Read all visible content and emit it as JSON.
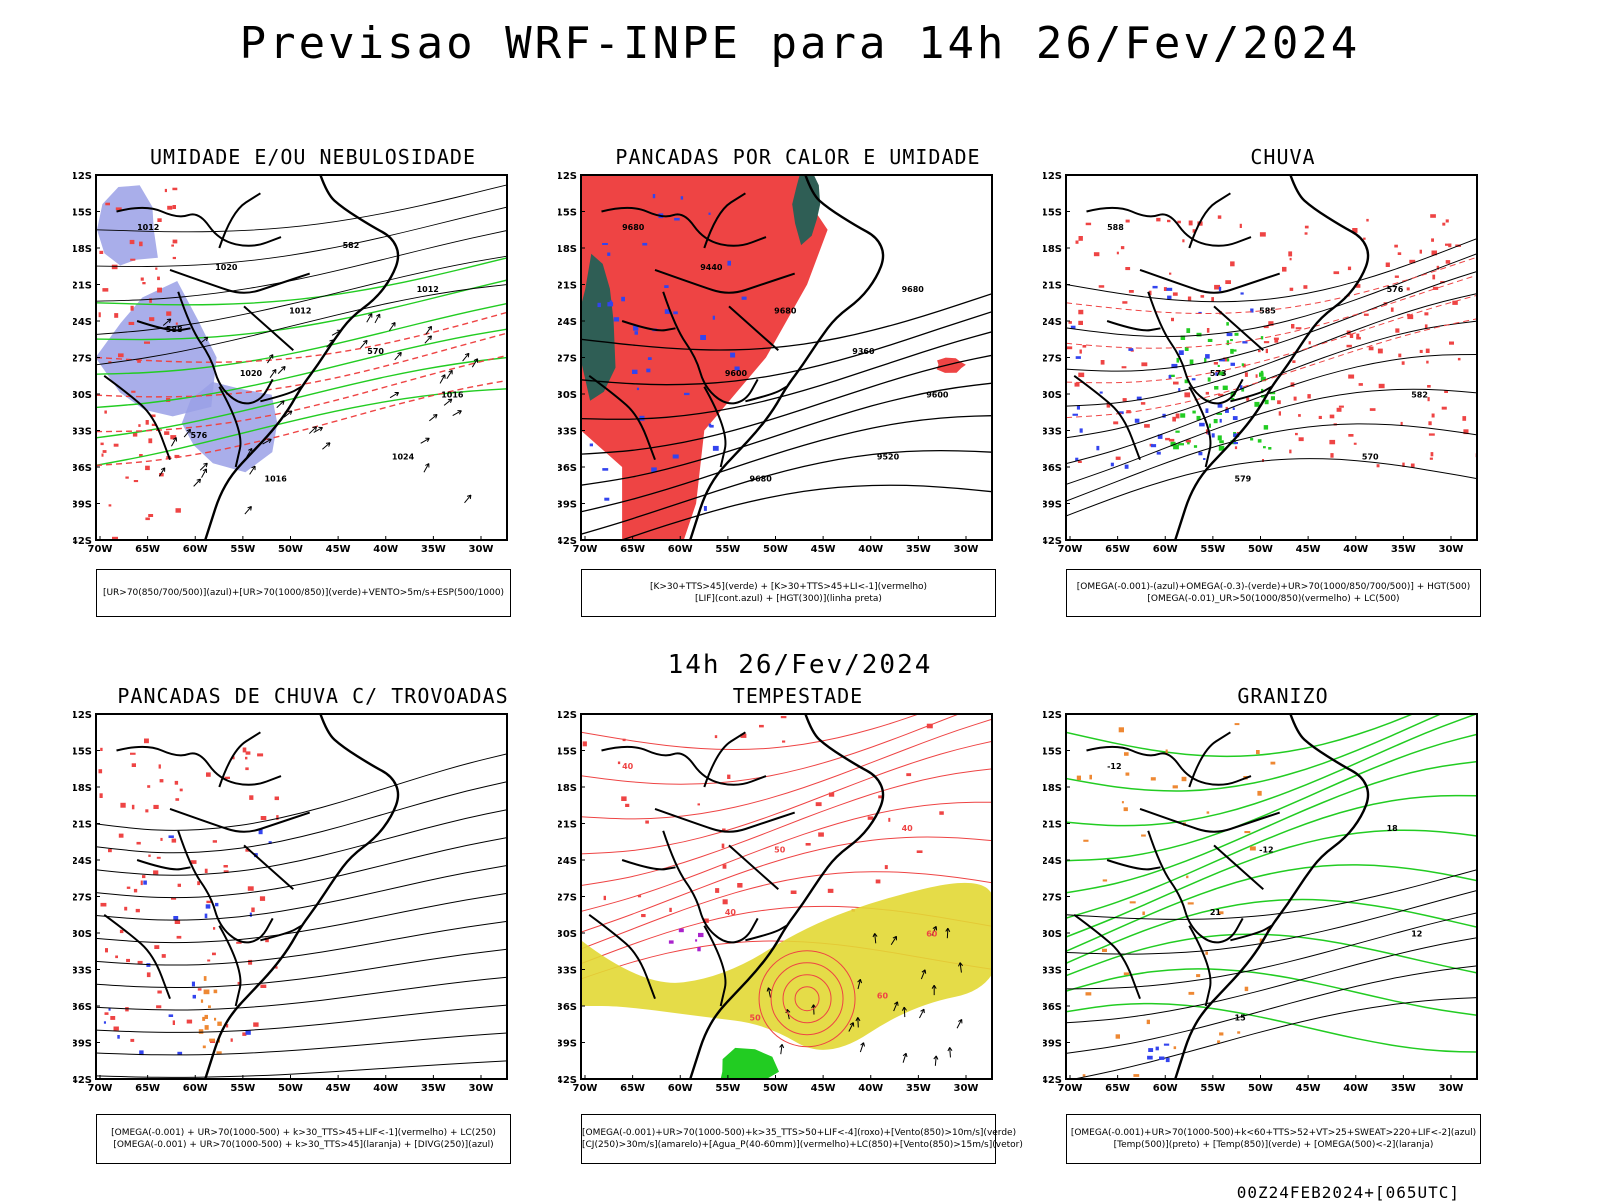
{
  "title": "Previsao WRF-INPE  para 14h 26/Fev/2024",
  "mid_date": "14h 26/Fev/2024",
  "footer": "00Z24FEB2024+[065UTC]",
  "axes": {
    "lat_labels": [
      "12S",
      "15S",
      "18S",
      "21S",
      "24S",
      "27S",
      "30S",
      "33S",
      "36S",
      "39S",
      "42S"
    ],
    "lon_labels": [
      "70W",
      "65W",
      "60W",
      "55W",
      "50W",
      "45W",
      "40W",
      "35W",
      "30W"
    ]
  },
  "colors": {
    "green": "#22cc22",
    "red": "#ee4444",
    "blue": "#3344ee",
    "lavender": "#9aa0e6",
    "yellow": "#e2d834",
    "dark_teal": "#2f5e55",
    "orange": "#ee8833",
    "purple": "#aa22cc",
    "black": "#000000"
  },
  "panels": [
    {
      "id": "umidade",
      "title": "UMIDADE E/OU NEBULOSIDADE",
      "legend": [
        "[UR>70(850/700/500)](azul)+[UR>70(1000/850)](verde)+VENTO>5m/s+ESP(500/1000)"
      ],
      "contour_labels": [
        "1012",
        "1012",
        "1016",
        "1016",
        "1012",
        "1020",
        "1024",
        "1020",
        "570",
        "576",
        "582",
        "588"
      ]
    },
    {
      "id": "pancadas-calor",
      "title": "PANCADAS POR CALOR E UMIDADE",
      "legend": [
        "[K>30+TTS>45](verde) + [K>30+TTS>45+LI<-1](vermelho)",
        "[LIF](cont.azul) + [HGT(300)](linha preta)"
      ],
      "contour_labels": [
        "9680",
        "9680",
        "9600",
        "9680",
        "9680",
        "9600",
        "9520",
        "9440",
        "9360"
      ]
    },
    {
      "id": "chuva",
      "title": "CHUVA",
      "legend": [
        "[OMEGA(-0.001)-(azul)+OMEGA(-0.3)-(verde)+UR>70(1000/850/700/500)] + HGT(500)",
        "[OMEGA(-0.01)_UR>50(1000/850)(vermelho) + LC(500)"
      ],
      "contour_labels": [
        "588",
        "585",
        "582",
        "579",
        "576",
        "573",
        "570"
      ]
    },
    {
      "id": "trovoadas",
      "title": "PANCADAS DE CHUVA C/ TROVOADAS",
      "legend": [
        "[OMEGA(-0.001) + UR>70(1000-500) + k>30_TTS>45+LIF<-1](vermelho) + LC(250)",
        "[OMEGA(-0.001) + UR>70(1000-500) + k>30_TTS>45](laranja) + [DIVG(250)](azul)"
      ],
      "contour_labels": []
    },
    {
      "id": "tempestade",
      "title": "TEMPESTADE",
      "legend": [
        "[OMEGA(-0.001)+UR>70(1000-500)+k>35_TTS>50+LIF<-4](roxo)+[Vento(850)>10m/s](verde)",
        "[CJ(250)>30m/s](amarelo)+[Agua_P(40-60mm)](vermelho)+LC(850)+[Vento(850)>15m/s](vetor)"
      ],
      "contour_labels": [
        "40",
        "50",
        "60",
        "50",
        "40",
        "40",
        "60"
      ]
    },
    {
      "id": "granizo",
      "title": "GRANIZO",
      "legend": [
        "[OMEGA(-0.001)+UR>70(1000-500)+k<60+TTS>52+VT>25+SWEAT>220+LIF<-2](azul)",
        "[Temp(500)](preto) + [Temp(850)](verde) + [OMEGA(500)<-2](laranja)"
      ],
      "contour_labels": [
        "-12",
        "-12",
        "12",
        "15",
        "18",
        "21"
      ]
    }
  ]
}
